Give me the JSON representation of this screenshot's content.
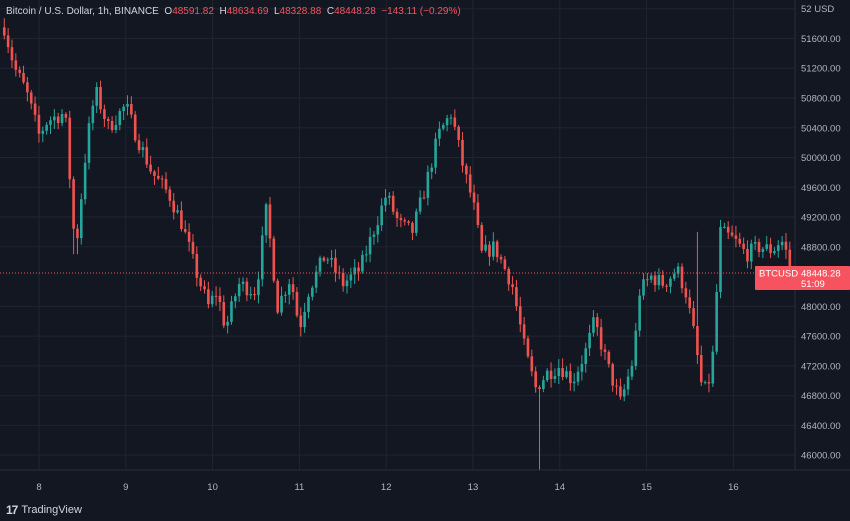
{
  "legend": {
    "symbol": "Bitcoin / U.S. Dollar, 1h, BINANCE",
    "o_label": "O",
    "o": "48591.82",
    "h_label": "H",
    "h": "48634.69",
    "l_label": "L",
    "l": "48328.88",
    "c_label": "C",
    "c": "48448.28",
    "change": "−143.11 (−0.29%)"
  },
  "brand": {
    "name": "TradingView",
    "logo": "17"
  },
  "price_tag": {
    "symbol": "BTCUSD",
    "price": "48448.28",
    "countdown": "51:09"
  },
  "colors": {
    "up": "#26a69a",
    "down": "#ef5350",
    "background": "#131722",
    "grid": "#1f2430"
  },
  "chart_data": {
    "type": "candlestick",
    "currency": "USD",
    "x_ticks": [
      "8",
      "9",
      "10",
      "11",
      "12",
      "13",
      "14",
      "15",
      "16"
    ],
    "y_ticks": [
      52000,
      51600,
      51200,
      50800,
      50400,
      50000,
      49600,
      49200,
      48800,
      48000,
      47600,
      47200,
      46800,
      46400,
      46000
    ],
    "y_top_label": "52 USD",
    "ylim": [
      45800,
      52050
    ],
    "last_price": 48448.28,
    "close_path": [
      [
        7.6,
        51750
      ],
      [
        7.72,
        51200
      ],
      [
        7.85,
        50900
      ],
      [
        8.0,
        50300
      ],
      [
        8.1,
        50500
      ],
      [
        8.3,
        50600
      ],
      [
        8.42,
        48700
      ],
      [
        8.55,
        50200
      ],
      [
        8.65,
        50900
      ],
      [
        8.8,
        50400
      ],
      [
        9.0,
        50700
      ],
      [
        9.12,
        50300
      ],
      [
        9.3,
        49800
      ],
      [
        9.5,
        49500
      ],
      [
        9.65,
        49100
      ],
      [
        9.8,
        48500
      ],
      [
        9.95,
        48000
      ],
      [
        10.05,
        48200
      ],
      [
        10.15,
        47700
      ],
      [
        10.3,
        48300
      ],
      [
        10.5,
        48200
      ],
      [
        10.62,
        49300
      ],
      [
        10.75,
        48000
      ],
      [
        10.9,
        48400
      ],
      [
        11.0,
        47700
      ],
      [
        11.1,
        48200
      ],
      [
        11.3,
        48700
      ],
      [
        11.5,
        48300
      ],
      [
        11.7,
        48500
      ],
      [
        11.85,
        49000
      ],
      [
        12.0,
        49500
      ],
      [
        12.15,
        49100
      ],
      [
        12.3,
        49000
      ],
      [
        12.45,
        49600
      ],
      [
        12.6,
        50300
      ],
      [
        12.75,
        50600
      ],
      [
        12.9,
        49800
      ],
      [
        13.0,
        49400
      ],
      [
        13.1,
        48700
      ],
      [
        13.25,
        48800
      ],
      [
        13.45,
        48300
      ],
      [
        13.6,
        47400
      ],
      [
        13.72,
        46900
      ],
      [
        13.85,
        47100
      ],
      [
        14.0,
        47200
      ],
      [
        14.15,
        47000
      ],
      [
        14.3,
        47400
      ],
      [
        14.4,
        47800
      ],
      [
        14.55,
        47200
      ],
      [
        14.7,
        46700
      ],
      [
        14.85,
        47300
      ],
      [
        14.92,
        48200
      ],
      [
        15.05,
        48400
      ],
      [
        15.2,
        48300
      ],
      [
        15.35,
        48500
      ],
      [
        15.45,
        48200
      ],
      [
        15.55,
        47600
      ],
      [
        15.65,
        46800
      ],
      [
        15.75,
        47100
      ],
      [
        15.85,
        49000
      ],
      [
        16.0,
        48900
      ],
      [
        16.15,
        48700
      ],
      [
        16.3,
        48800
      ],
      [
        16.45,
        48750
      ],
      [
        16.55,
        48900
      ],
      [
        16.65,
        48600
      ]
    ],
    "extremes": [
      [
        8.42,
        48700,
        48500
      ],
      [
        13.78,
        45800,
        45800
      ],
      [
        15.6,
        49200,
        49000
      ]
    ]
  }
}
